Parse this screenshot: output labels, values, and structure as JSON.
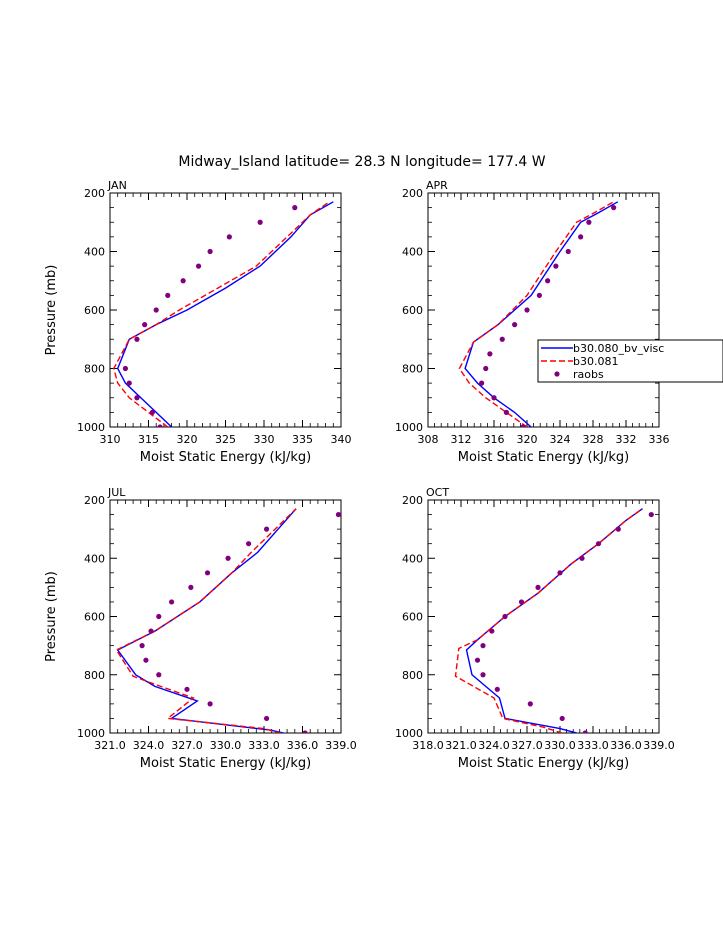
{
  "figure": {
    "title": "Midway_Island  latitude= 28.3 N longitude= 177.4 W"
  },
  "legend": {
    "placement": "right of APR panel",
    "entries": [
      {
        "label": "b30.080_bv_visc",
        "style": "solid",
        "color": "#0000ff"
      },
      {
        "label": "b30.081",
        "style": "dashed",
        "color": "#ff0000"
      },
      {
        "label": "raobs",
        "style": "dots",
        "color": "#800080"
      }
    ]
  },
  "chart_data": [
    {
      "type": "line",
      "panel_label": "JAN",
      "xlabel": "Moist Static Energy (kJ/kg)",
      "ylabel": "Pressure (mb)",
      "xlim": [
        310,
        340
      ],
      "ylim": [
        1000,
        200
      ],
      "y_inverted": true,
      "xticks": [
        310,
        315,
        320,
        325,
        330,
        335,
        340
      ],
      "xtick_labels": [
        "310",
        "315",
        "320",
        "325",
        "330",
        "335",
        "340"
      ],
      "yticks": [
        200,
        400,
        600,
        800,
        1000
      ],
      "ytick_labels": [
        "200",
        "400",
        "600",
        "800",
        "1000"
      ],
      "series": [
        {
          "name": "b30.080_bv_visc",
          "style": "solid",
          "color": "#0000ff",
          "points": [
            [
              318.0,
              1000
            ],
            [
              316.0,
              950
            ],
            [
              314.0,
              900
            ],
            [
              312.0,
              850
            ],
            [
              311.0,
              800
            ],
            [
              312.5,
              700
            ],
            [
              316.0,
              650
            ],
            [
              320.0,
              600
            ],
            [
              325.0,
              525
            ],
            [
              329.5,
              450
            ],
            [
              333.5,
              350
            ],
            [
              336.0,
              275
            ],
            [
              339.0,
              230
            ]
          ]
        },
        {
          "name": "b30.081",
          "style": "dashed",
          "color": "#ff0000",
          "points": [
            [
              317.5,
              1000
            ],
            [
              315.0,
              950
            ],
            [
              312.5,
              900
            ],
            [
              311.0,
              850
            ],
            [
              310.5,
              800
            ],
            [
              312.5,
              700
            ],
            [
              316.0,
              650
            ],
            [
              319.0,
              600
            ],
            [
              324.0,
              525
            ],
            [
              329.0,
              450
            ],
            [
              333.0,
              350
            ],
            [
              336.0,
              275
            ],
            [
              338.5,
              230
            ]
          ]
        },
        {
          "name": "raobs",
          "style": "dots",
          "color": "#800080",
          "points": [
            [
              316.5,
              1000
            ],
            [
              315.5,
              950
            ],
            [
              313.5,
              900
            ],
            [
              312.5,
              850
            ],
            [
              312.0,
              800
            ],
            [
              313.5,
              700
            ],
            [
              314.5,
              650
            ],
            [
              316.0,
              600
            ],
            [
              317.5,
              550
            ],
            [
              319.5,
              500
            ],
            [
              321.5,
              450
            ],
            [
              323.0,
              400
            ],
            [
              325.5,
              350
            ],
            [
              329.5,
              300
            ],
            [
              334.0,
              250
            ]
          ]
        }
      ]
    },
    {
      "type": "line",
      "panel_label": "APR",
      "xlabel": "Moist Static Energy (kJ/kg)",
      "ylabel": "",
      "xlim": [
        308,
        336
      ],
      "ylim": [
        1000,
        200
      ],
      "y_inverted": true,
      "xticks": [
        308,
        312,
        316,
        320,
        324,
        328,
        332,
        336
      ],
      "xtick_labels": [
        "308",
        "312",
        "316",
        "320",
        "324",
        "328",
        "332",
        "336"
      ],
      "yticks": [
        200,
        400,
        600,
        800,
        1000
      ],
      "ytick_labels": [
        "200",
        "400",
        "600",
        "800",
        "1000"
      ],
      "series": [
        {
          "name": "b30.080_bv_visc",
          "style": "solid",
          "color": "#0000ff",
          "points": [
            [
              320.5,
              1000
            ],
            [
              318.5,
              950
            ],
            [
              316.0,
              900
            ],
            [
              314.0,
              850
            ],
            [
              312.5,
              800
            ],
            [
              313.5,
              710
            ],
            [
              316.5,
              650
            ],
            [
              320.5,
              550
            ],
            [
              324.0,
              400
            ],
            [
              326.5,
              300
            ],
            [
              328.5,
              270
            ],
            [
              331.0,
              230
            ]
          ]
        },
        {
          "name": "b30.081",
          "style": "dashed",
          "color": "#ff0000",
          "points": [
            [
              320.0,
              1000
            ],
            [
              317.5,
              950
            ],
            [
              315.0,
              900
            ],
            [
              313.0,
              850
            ],
            [
              311.8,
              800
            ],
            [
              313.5,
              710
            ],
            [
              316.5,
              650
            ],
            [
              320.0,
              550
            ],
            [
              323.5,
              400
            ],
            [
              326.0,
              300
            ],
            [
              328.0,
              270
            ],
            [
              330.5,
              230
            ]
          ]
        },
        {
          "name": "raobs",
          "style": "dots",
          "color": "#800080",
          "points": [
            [
              319.5,
              1000
            ],
            [
              317.5,
              950
            ],
            [
              316.0,
              900
            ],
            [
              314.5,
              850
            ],
            [
              315.0,
              800
            ],
            [
              315.5,
              750
            ],
            [
              317.0,
              700
            ],
            [
              318.5,
              650
            ],
            [
              320.0,
              600
            ],
            [
              321.5,
              550
            ],
            [
              322.5,
              500
            ],
            [
              323.5,
              450
            ],
            [
              325.0,
              400
            ],
            [
              326.5,
              350
            ],
            [
              327.5,
              300
            ],
            [
              330.5,
              250
            ]
          ]
        }
      ]
    },
    {
      "type": "line",
      "panel_label": "JUL",
      "xlabel": "Moist Static Energy (kJ/kg)",
      "ylabel": "Pressure (mb)",
      "xlim": [
        321.0,
        339.0
      ],
      "ylim": [
        1000,
        200
      ],
      "y_inverted": true,
      "xticks": [
        321.0,
        324.0,
        327.0,
        330.0,
        333.0,
        336.0,
        339.0
      ],
      "xtick_labels": [
        "321.0",
        "324.0",
        "327.0",
        "330.0",
        "333.0",
        "336.0",
        "339.0"
      ],
      "yticks": [
        200,
        400,
        600,
        800,
        1000
      ],
      "ytick_labels": [
        "200",
        "400",
        "600",
        "800",
        "1000"
      ],
      "series": [
        {
          "name": "b30.080_bv_visc",
          "style": "solid",
          "color": "#0000ff",
          "points": [
            [
              335.5,
              1010
            ],
            [
              333.5,
              990
            ],
            [
              325.8,
              950
            ],
            [
              327.8,
              890
            ],
            [
              324.5,
              840
            ],
            [
              323.0,
              800
            ],
            [
              321.6,
              715
            ],
            [
              324.5,
              650
            ],
            [
              328.0,
              550
            ],
            [
              330.5,
              450
            ],
            [
              332.5,
              380
            ],
            [
              335.5,
              230
            ]
          ]
        },
        {
          "name": "b30.081",
          "style": "dashed",
          "color": "#ff0000",
          "points": [
            [
              335.0,
              1010
            ],
            [
              333.0,
              985
            ],
            [
              325.5,
              950
            ],
            [
              327.5,
              880
            ],
            [
              324.0,
              825
            ],
            [
              322.8,
              805
            ],
            [
              321.5,
              715
            ],
            [
              324.5,
              650
            ],
            [
              328.0,
              550
            ],
            [
              330.5,
              450
            ],
            [
              332.0,
              380
            ],
            [
              335.5,
              230
            ]
          ]
        },
        {
          "name": "raobs",
          "style": "dots",
          "color": "#800080",
          "points": [
            [
              336.2,
              1000
            ],
            [
              333.2,
              950
            ],
            [
              328.8,
              900
            ],
            [
              327.0,
              850
            ],
            [
              324.8,
              800
            ],
            [
              323.8,
              750
            ],
            [
              323.5,
              700
            ],
            [
              324.2,
              650
            ],
            [
              324.8,
              600
            ],
            [
              325.8,
              550
            ],
            [
              327.3,
              500
            ],
            [
              328.6,
              450
            ],
            [
              330.2,
              400
            ],
            [
              331.8,
              350
            ],
            [
              333.2,
              300
            ],
            [
              338.8,
              250
            ]
          ]
        }
      ]
    },
    {
      "type": "line",
      "panel_label": "OCT",
      "xlabel": "Moist Static Energy (kJ/kg)",
      "ylabel": "",
      "xlim": [
        318.0,
        339.0
      ],
      "ylim": [
        1000,
        200
      ],
      "y_inverted": true,
      "xticks": [
        318.0,
        321.0,
        324.0,
        327.0,
        330.0,
        333.0,
        336.0,
        339.0
      ],
      "xtick_labels": [
        "318.0",
        "321.0",
        "324.0",
        "327.0",
        "330.0",
        "333.0",
        "336.0",
        "339.0"
      ],
      "yticks": [
        200,
        400,
        600,
        800,
        1000
      ],
      "ytick_labels": [
        "200",
        "400",
        "600",
        "800",
        "1000"
      ],
      "series": [
        {
          "name": "b30.080_bv_visc",
          "style": "solid",
          "color": "#0000ff",
          "points": [
            [
              332.5,
              1010
            ],
            [
              330.0,
              985
            ],
            [
              325.0,
              950
            ],
            [
              324.5,
              880
            ],
            [
              322.0,
              800
            ],
            [
              321.5,
              715
            ],
            [
              322.5,
              680
            ],
            [
              325.0,
              600
            ],
            [
              328.0,
              520
            ],
            [
              331.0,
              420
            ],
            [
              333.5,
              350
            ],
            [
              336.0,
              270
            ],
            [
              337.5,
              230
            ]
          ]
        },
        {
          "name": "b30.081",
          "style": "dashed",
          "color": "#ff0000",
          "points": [
            [
              331.0,
              1010
            ],
            [
              328.5,
              980
            ],
            [
              324.8,
              950
            ],
            [
              324.0,
              880
            ],
            [
              320.5,
              805
            ],
            [
              320.8,
              710
            ],
            [
              322.5,
              680
            ],
            [
              325.0,
              600
            ],
            [
              328.0,
              520
            ],
            [
              331.0,
              420
            ],
            [
              333.5,
              350
            ],
            [
              336.0,
              270
            ],
            [
              337.5,
              230
            ]
          ]
        },
        {
          "name": "raobs",
          "style": "dots",
          "color": "#800080",
          "points": [
            [
              332.3,
              1000
            ],
            [
              330.2,
              950
            ],
            [
              327.3,
              900
            ],
            [
              324.3,
              850
            ],
            [
              323.0,
              800
            ],
            [
              322.5,
              750
            ],
            [
              323.0,
              700
            ],
            [
              323.8,
              650
            ],
            [
              325.0,
              600
            ],
            [
              326.5,
              550
            ],
            [
              328.0,
              500
            ],
            [
              330.0,
              450
            ],
            [
              332.0,
              400
            ],
            [
              333.5,
              350
            ],
            [
              335.3,
              300
            ],
            [
              338.3,
              250
            ]
          ]
        }
      ]
    }
  ]
}
